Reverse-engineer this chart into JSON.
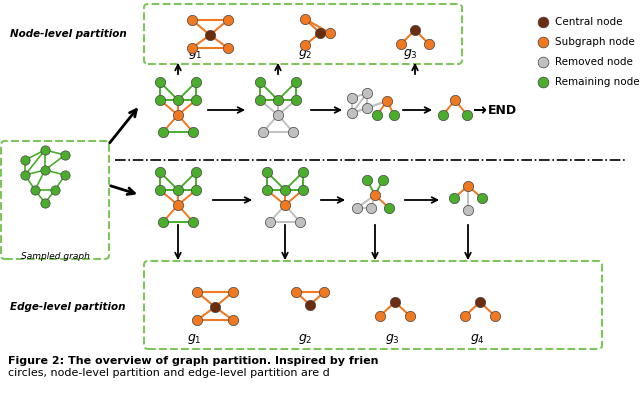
{
  "colors": {
    "central": "#6B2D0E",
    "subgraph": "#F07820",
    "removed": "#C0C0C0",
    "remaining": "#4AAD2C",
    "edge_green": "#4AAD2C",
    "edge_orange": "#F07820",
    "edge_gray": "#C0C0C0",
    "box_border": "#7DC45A",
    "bg": "#FFFFFF",
    "text_dark": "#111111"
  },
  "legend": [
    [
      "#6B2D0E",
      "Central node"
    ],
    [
      "#F07820",
      "Subgraph node"
    ],
    [
      "#C0C0C0",
      "Removed node"
    ],
    [
      "#4AAD2C",
      "Remaining node"
    ]
  ],
  "caption_bold": "Figure 2: The overview of graph partition. Inspired by frien",
  "caption_normal": "circles, node-level partition and edge-level partition are d"
}
